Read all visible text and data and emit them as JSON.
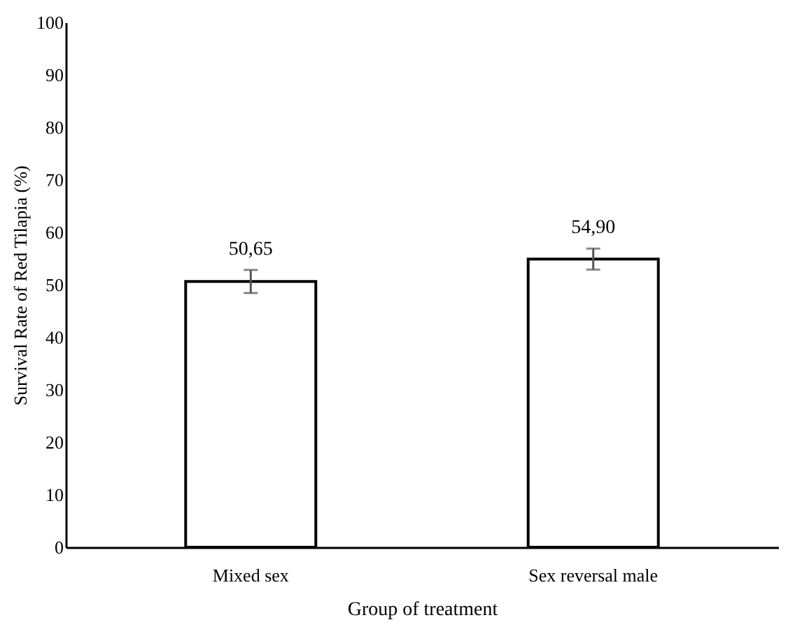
{
  "chart_data": {
    "type": "bar",
    "xlabel": "Group of treatment",
    "ylabel": "Survival Rate of Red Tilapia (%)",
    "categories": [
      "Mixed sex",
      "Sex reversal male"
    ],
    "values": [
      50.65,
      54.9
    ],
    "value_labels": [
      "50,65",
      "54,90"
    ],
    "errors": [
      2.2,
      2.0
    ],
    "color": "#ffffff",
    "ylim": [
      0,
      100
    ],
    "yticks": [
      0,
      10,
      20,
      30,
      40,
      50,
      60,
      70,
      80,
      90,
      100
    ],
    "grid": false
  }
}
